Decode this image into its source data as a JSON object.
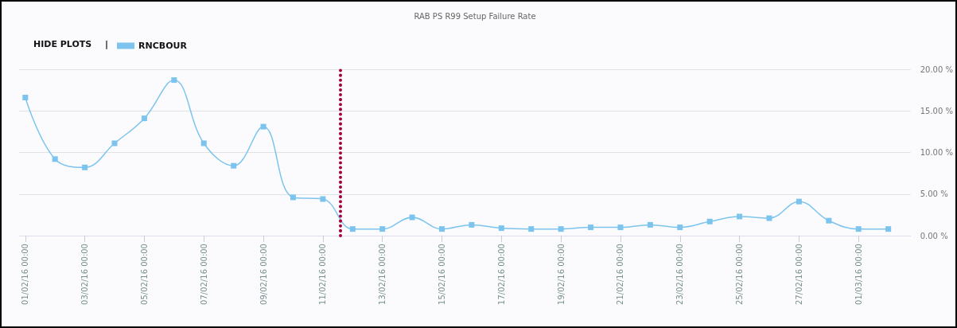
{
  "chart_data": {
    "type": "line",
    "title": "RAB PS R99 Setup Failure Rate",
    "annotations": [
      "HIDE PLOTS",
      "|"
    ],
    "x": [
      "--02-01",
      "--02-02",
      "--02-03",
      "--02-04",
      "--02-05",
      "--02-06",
      "--02-07",
      "--02-08",
      "--02-09",
      "--02-10",
      "--02-11",
      "--02-12",
      "--02-13",
      "--02-14",
      "--02-15",
      "--02-16",
      "--02-17",
      "--02-18",
      "--02-19",
      "--02-20",
      "--02-21",
      "--02-22",
      "--02-23",
      "--02-24",
      "--02-25",
      "--02-26",
      "--02-27",
      "--02-28",
      "--03-01",
      "--03-02"
    ],
    "series": [
      {
        "name": "RNCBOUR",
        "color": "#7cc4ee",
        "values": [
          16.6,
          9.2,
          8.2,
          11.1,
          14.1,
          18.7,
          11.1,
          8.4,
          13.1,
          4.6,
          4.4,
          0.8,
          0.8,
          2.2,
          0.8,
          1.3,
          0.9,
          0.8,
          0.8,
          1.0,
          1.0,
          1.3,
          1.0,
          1.7,
          2.3,
          2.1,
          4.1,
          1.8,
          0.8,
          0.8
        ]
      }
    ],
    "xlim": [
      "--01-31T19:00",
      "--03-02T18:00"
    ],
    "xticks": [
      {
        "value": "--02-01",
        "label": "01/02/16 00:00"
      },
      {
        "value": "--02-03",
        "label": "03/02/16 00:00"
      },
      {
        "value": "--02-05",
        "label": "05/02/16 00:00"
      },
      {
        "value": "--02-07",
        "label": "07/02/16 00:00"
      },
      {
        "value": "--02-09",
        "label": "09/02/16 00:00"
      },
      {
        "value": "--02-11",
        "label": "11/02/16 00:00"
      },
      {
        "value": "--02-13",
        "label": "13/02/16 00:00"
      },
      {
        "value": "--02-15",
        "label": "15/02/16 00:00"
      },
      {
        "value": "--02-17",
        "label": "17/02/16 00:00"
      },
      {
        "value": "--02-19",
        "label": "19/02/16 00:00"
      },
      {
        "value": "--02-21",
        "label": "21/02/16 00:00"
      },
      {
        "value": "--02-23",
        "label": "23/02/16 00:00"
      },
      {
        "value": "--02-25",
        "label": "25/02/16 00:00"
      },
      {
        "value": "--02-27",
        "label": "27/02/16 00:00"
      },
      {
        "value": "--03-01",
        "label": "01/03/16 00:00"
      }
    ],
    "ylim": [
      0,
      20
    ],
    "yticks": [
      {
        "value": 0,
        "label": "0.00 %"
      },
      {
        "value": 5,
        "label": "5.00 %"
      },
      {
        "value": 10,
        "label": "10.00 %"
      },
      {
        "value": 15,
        "label": "15.00 %"
      },
      {
        "value": 20,
        "label": "20.00 %"
      }
    ],
    "ref_lines": [
      {
        "axis": "x",
        "value": "--02-11T14:00",
        "label": null,
        "color": "#a0003c",
        "line_style": "dotted"
      }
    ],
    "grid": "y",
    "legend": "top left",
    "marker": "square",
    "line_style": "solid"
  }
}
